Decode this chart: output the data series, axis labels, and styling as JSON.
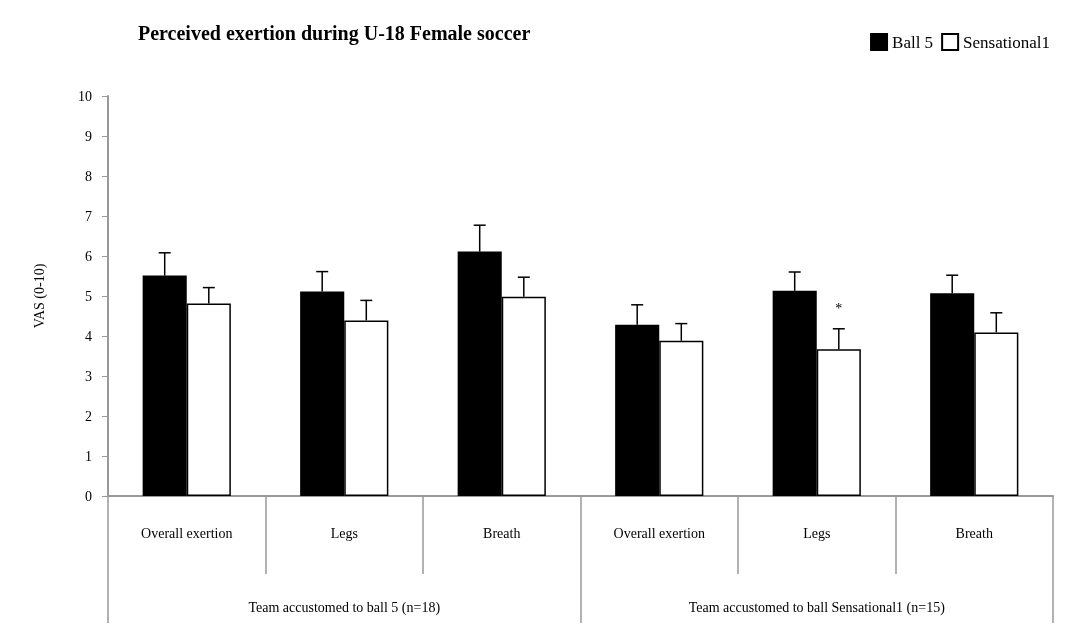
{
  "chart_data": {
    "type": "bar",
    "title": "Perceived exertion during U-18 Female soccer",
    "ylabel": "VAS (0-10)",
    "categories": [
      "Overall exertion",
      "Legs",
      "Breath",
      "Overall exertion",
      "Legs",
      "Breath"
    ],
    "series": [
      {
        "name": "Ball 5",
        "color": "#000000",
        "values": [
          5.51,
          5.11,
          6.11,
          4.28,
          5.13,
          5.07
        ],
        "errors": [
          [
            5.51,
            6.08
          ],
          [
            5.11,
            5.61
          ],
          [
            6.11,
            6.77
          ],
          [
            4.28,
            4.78
          ],
          [
            5.13,
            5.6
          ],
          [
            5.07,
            5.52
          ]
        ]
      },
      {
        "name": "Sensational1",
        "color": "#ffffff",
        "values": [
          4.81,
          4.39,
          4.98,
          3.88,
          3.67,
          4.09
        ],
        "errors": [
          [
            4.81,
            5.21
          ],
          [
            4.39,
            4.89
          ],
          [
            4.98,
            5.47
          ],
          [
            3.88,
            4.31
          ],
          [
            3.67,
            4.18
          ],
          [
            4.09,
            4.58
          ]
        ],
        "value_labels": [
          null,
          null,
          null,
          null,
          "*",
          null
        ]
      }
    ],
    "annotations": [
      "Team accustomed to ball 5 (n=18)",
      "Team accustomed to ball Sensational1 (n=15)"
    ],
    "ylim": [
      0,
      10
    ],
    "yticks": [
      0,
      1,
      2,
      3,
      4,
      5,
      6,
      7,
      8,
      9,
      10
    ],
    "grid": false,
    "legend": "top right"
  }
}
